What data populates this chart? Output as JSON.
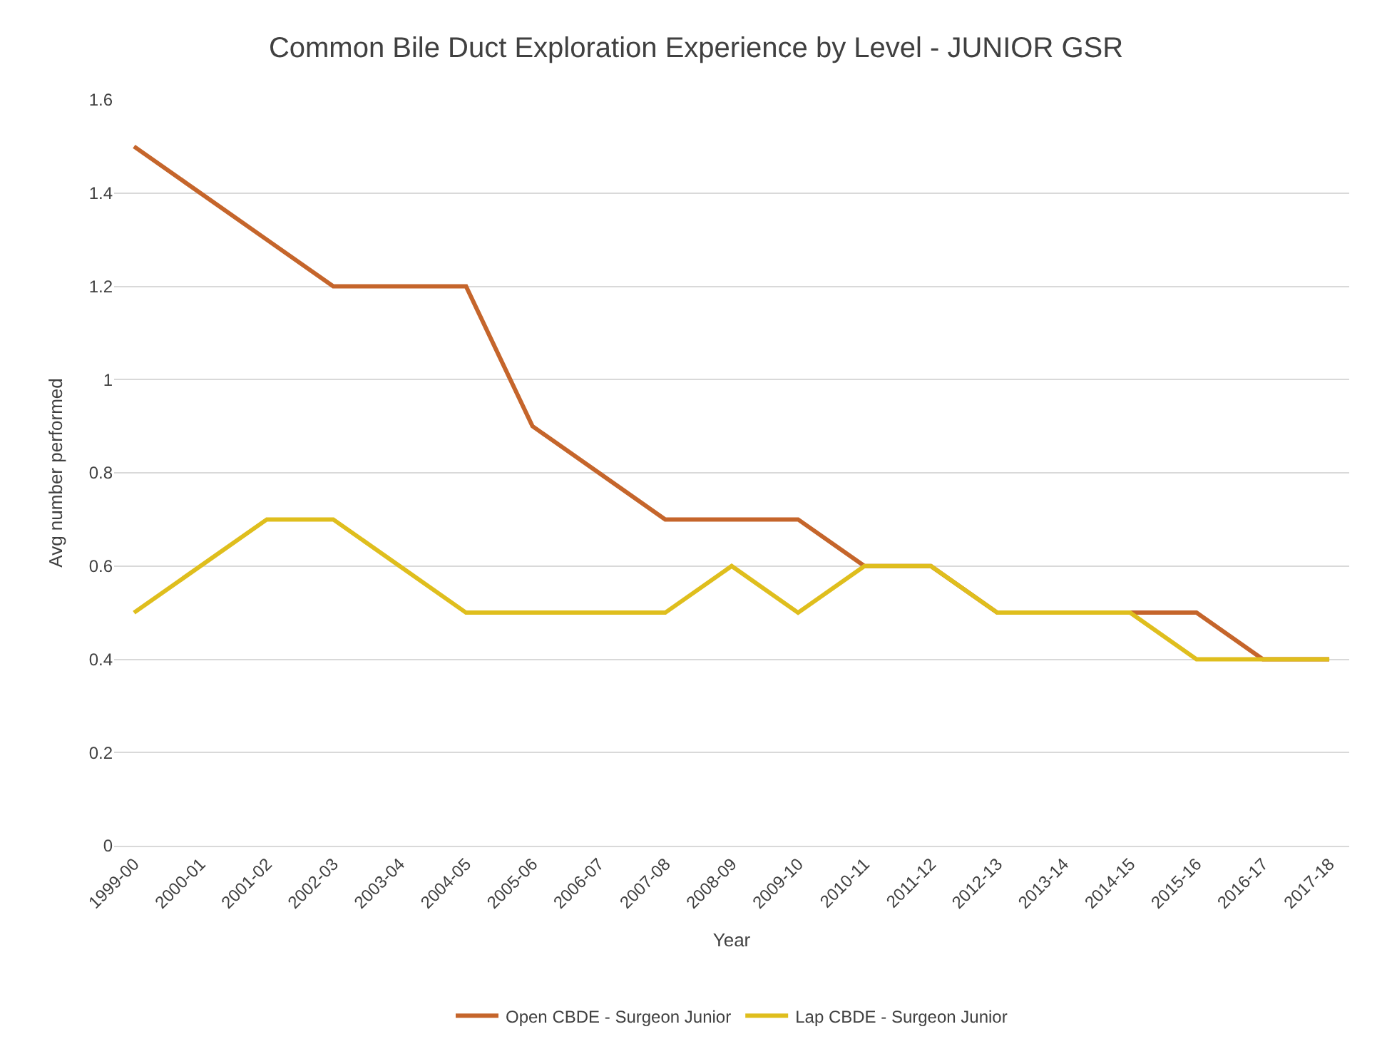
{
  "chart_data": {
    "type": "line",
    "title": "Common Bile Duct Exploration Experience by Level - JUNIOR GSR",
    "xlabel": "Year",
    "ylabel": "Avg number performed",
    "categories": [
      "1999-00",
      "2000-01",
      "2001-02",
      "2002-03",
      "2003-04",
      "2004-05",
      "2005-06",
      "2006-07",
      "2007-08",
      "2008-09",
      "2009-10",
      "2010-11",
      "2011-12",
      "2012-13",
      "2013-14",
      "2014-15",
      "2015-16",
      "2016-17",
      "2017-18"
    ],
    "series": [
      {
        "name": "Open CBDE - Surgeon Junior",
        "color": "#c5652b",
        "values": [
          1.5,
          1.4,
          1.3,
          1.2,
          1.2,
          1.2,
          0.9,
          0.8,
          0.7,
          0.7,
          0.7,
          0.6,
          0.6,
          0.5,
          0.5,
          0.5,
          0.5,
          0.4,
          0.4
        ]
      },
      {
        "name": "Lap CBDE - Surgeon Junior",
        "color": "#dfbe1d",
        "values": [
          0.5,
          0.6,
          0.7,
          0.7,
          0.6,
          0.5,
          0.5,
          0.5,
          0.5,
          0.6,
          0.5,
          0.6,
          0.6,
          0.5,
          0.5,
          0.5,
          0.4,
          0.4,
          0.4
        ]
      }
    ],
    "ylim": [
      0,
      1.6
    ],
    "yticks": [
      0,
      0.2,
      0.4,
      0.6,
      0.8,
      1,
      1.2,
      1.4,
      1.6
    ],
    "grid": "y",
    "legend": "bottom",
    "marker": "none",
    "line_style": "solid"
  }
}
